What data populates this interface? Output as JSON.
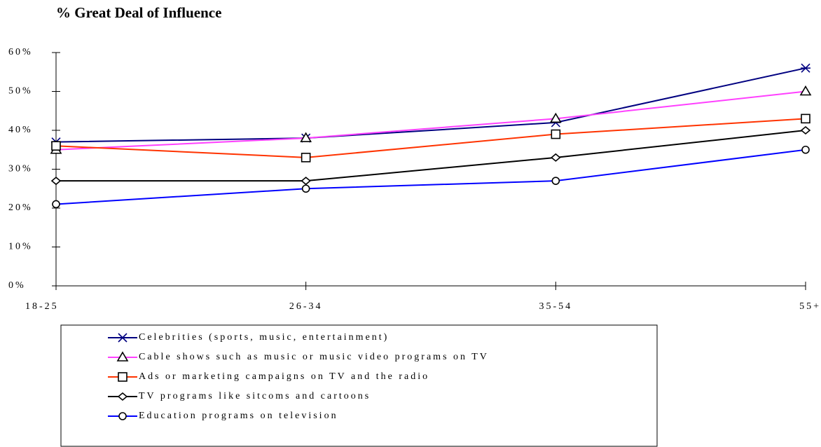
{
  "chart_data": {
    "type": "line",
    "title": "% Great Deal of Influence",
    "categories": [
      "18-25",
      "26-34",
      "35-54",
      "55+"
    ],
    "series": [
      {
        "name": "Celebrities (sports, music, entertainment)",
        "color": "#000080",
        "marker": "asterisk",
        "values": [
          37,
          38,
          42,
          56
        ]
      },
      {
        "name": "Cable shows such as music or music video programs on TV",
        "color": "#ff40ff",
        "marker": "triangle",
        "values": [
          35,
          38,
          43,
          50
        ]
      },
      {
        "name": "Ads or marketing campaigns on TV and the radio",
        "color": "#ff3300",
        "marker": "square",
        "values": [
          36,
          33,
          39,
          43
        ]
      },
      {
        "name": "TV programs like sitcoms and cartoons",
        "color": "#000000",
        "marker": "diamond",
        "values": [
          27,
          27,
          33,
          40
        ]
      },
      {
        "name": "Education programs on television",
        "color": "#0000ff",
        "marker": "circle",
        "values": [
          21,
          25,
          27,
          35
        ]
      }
    ],
    "ylim": [
      0,
      60
    ],
    "yticks": [
      {
        "value": 0,
        "label": "0%"
      },
      {
        "value": 10,
        "label": "10%"
      },
      {
        "value": 20,
        "label": "20%"
      },
      {
        "value": 30,
        "label": "30%"
      },
      {
        "value": 40,
        "label": "40%"
      },
      {
        "value": 50,
        "label": "50%"
      },
      {
        "value": 60,
        "label": "60%"
      }
    ],
    "grid": false
  }
}
